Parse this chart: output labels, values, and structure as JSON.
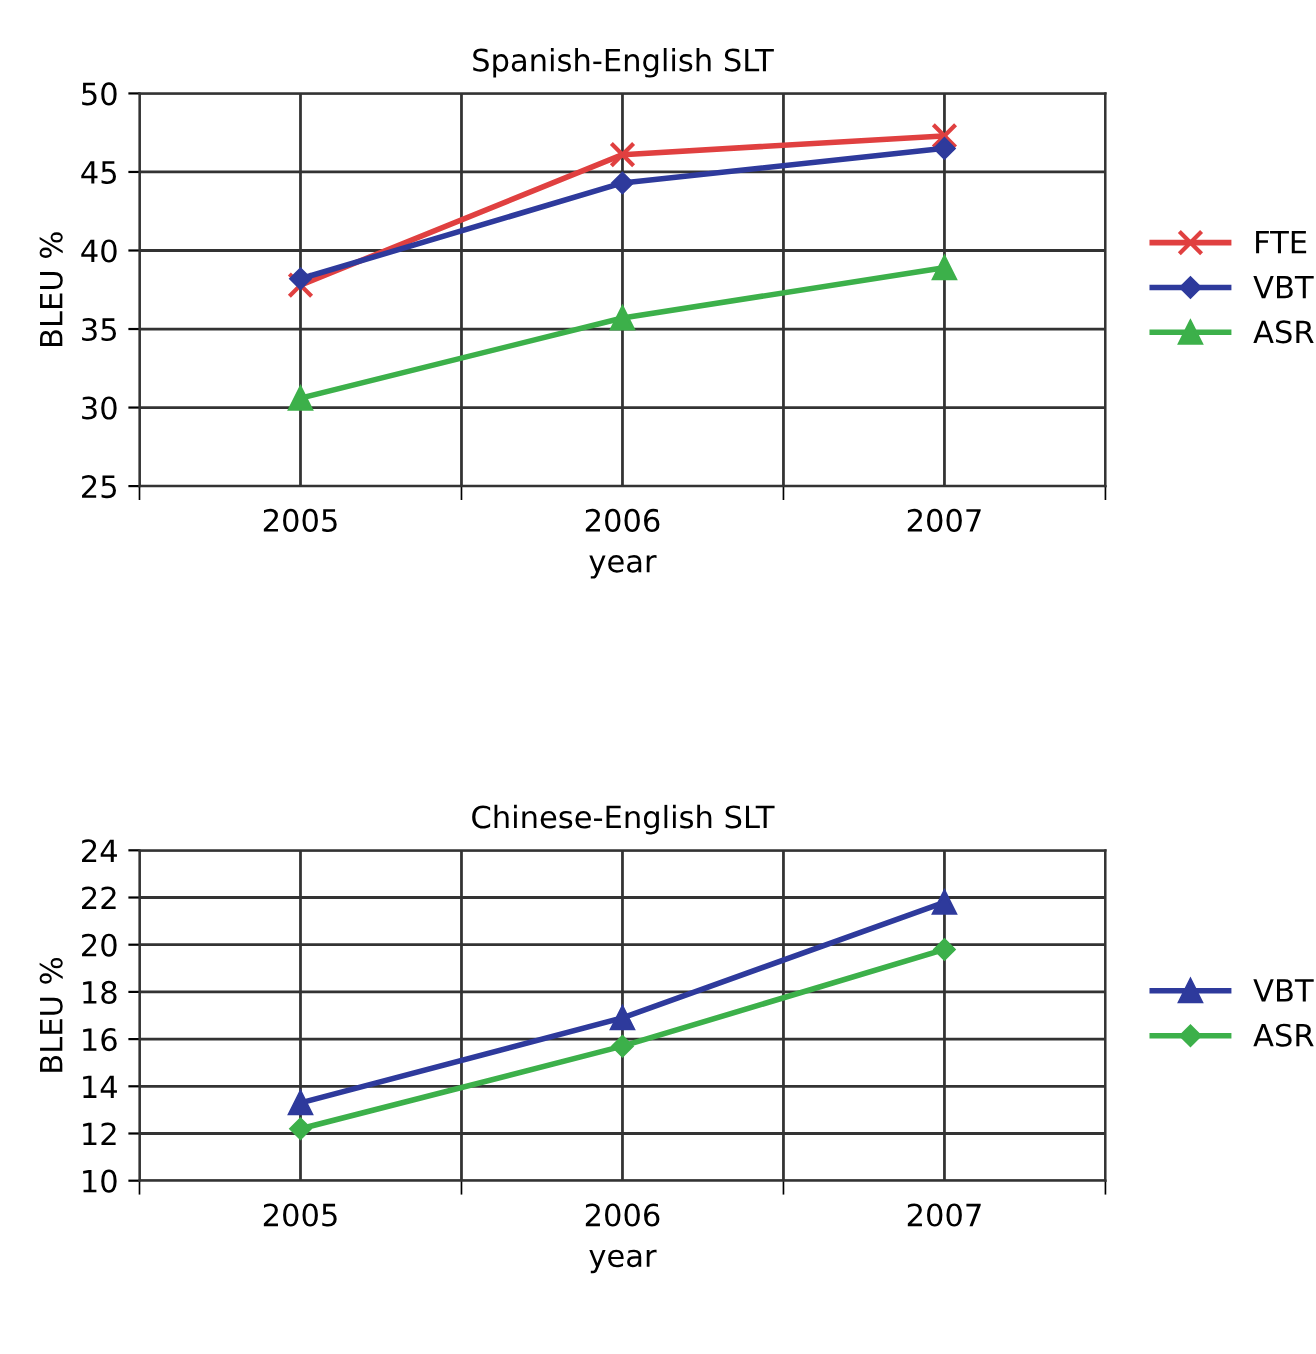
{
  "chart_data": [
    {
      "type": "line",
      "title": "Spanish-English SLT",
      "xlabel": "year",
      "ylabel": "BLEU %",
      "categories": [
        "2005",
        "2006",
        "2007"
      ],
      "ylim": [
        25,
        50
      ],
      "yticks": [
        25,
        30,
        35,
        40,
        45,
        50
      ],
      "grid": true,
      "legend": "right",
      "series": [
        {
          "name": "FTE",
          "color": "#e04040",
          "marker": "cross",
          "values": [
            37.8,
            46.1,
            47.3
          ]
        },
        {
          "name": "VBT",
          "color": "#2e3a9c",
          "marker": "diamond",
          "values": [
            38.2,
            44.3,
            46.5
          ]
        },
        {
          "name": "ASR",
          "color": "#3cb04a",
          "marker": "triangle",
          "values": [
            30.6,
            35.7,
            38.9
          ]
        }
      ]
    },
    {
      "type": "line",
      "title": "Chinese-English SLT",
      "xlabel": "year",
      "ylabel": "BLEU %",
      "categories": [
        "2005",
        "2006",
        "2007"
      ],
      "ylim": [
        10,
        24
      ],
      "yticks": [
        10,
        12,
        14,
        16,
        18,
        20,
        22,
        24
      ],
      "grid": true,
      "legend": "right",
      "series": [
        {
          "name": "VBT",
          "color": "#2e3a9c",
          "marker": "triangle",
          "values": [
            13.3,
            16.9,
            21.8
          ]
        },
        {
          "name": "ASR",
          "color": "#3cb04a",
          "marker": "diamond",
          "values": [
            12.2,
            15.7,
            19.8
          ]
        }
      ]
    }
  ]
}
